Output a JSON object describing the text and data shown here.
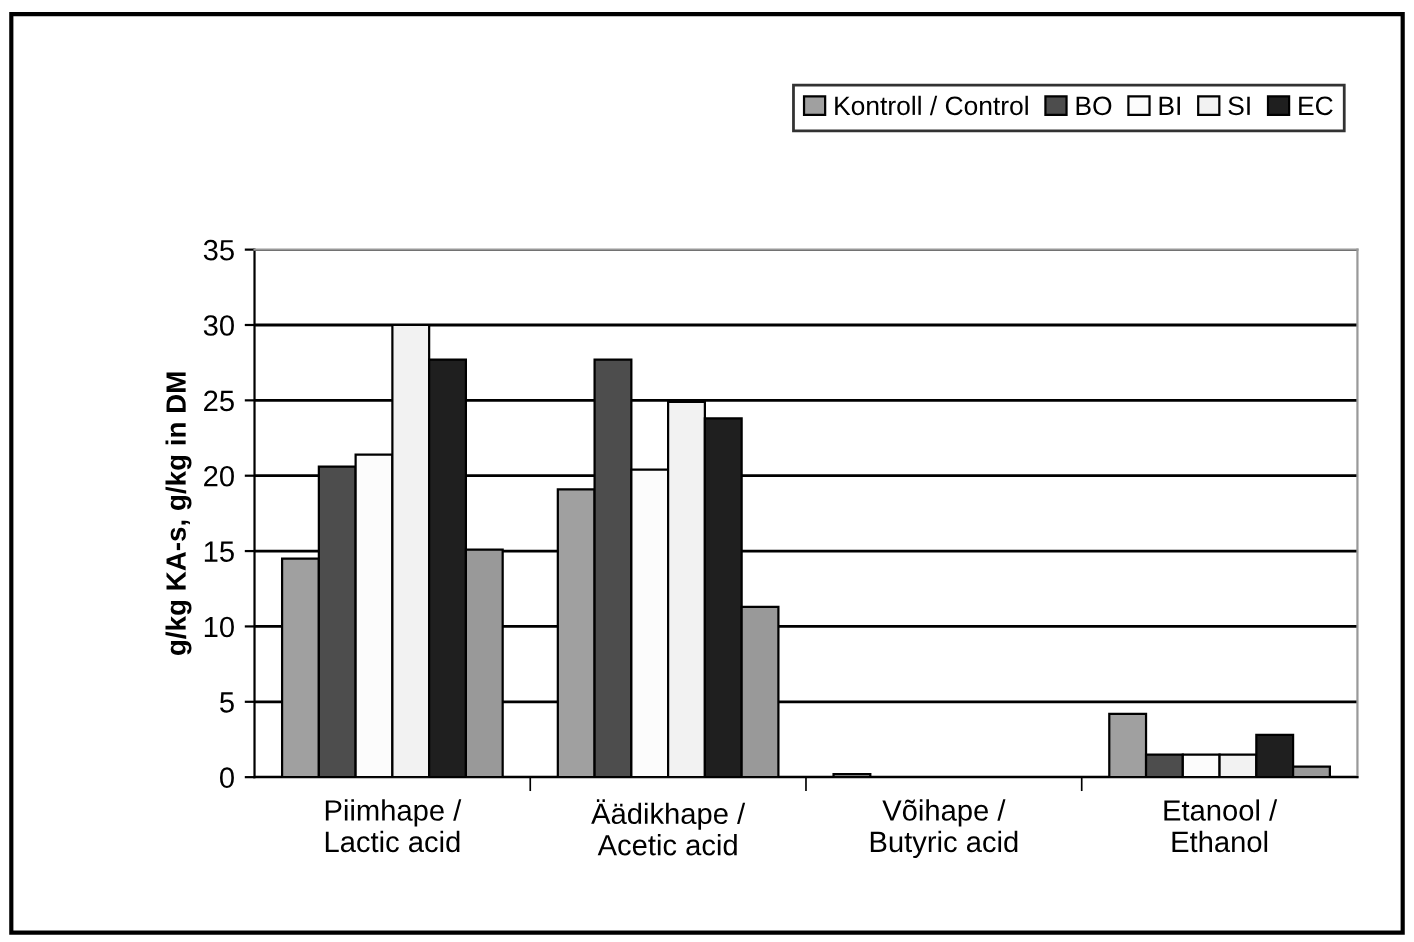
{
  "chart_data": {
    "type": "bar",
    "ylabel": "g/kg KA-s, g/kg in DM",
    "categories": [
      "Piimhape /\nLactic acid",
      "Äädikhape /\nAcetic acid",
      "Võihape /\nButyric acid",
      "Etanool /\nEthanol"
    ],
    "series": [
      {
        "name": "Kontroll / Control",
        "color": "#a0a0a0",
        "values": [
          14.5,
          19.1,
          0.2,
          4.2
        ]
      },
      {
        "name": "BO",
        "color": "#4d4d4d",
        "values": [
          20.6,
          27.7,
          null,
          1.5
        ]
      },
      {
        "name": "BI",
        "color": "#fcfcfc",
        "values": [
          21.4,
          20.4,
          null,
          1.5
        ]
      },
      {
        "name": "SI",
        "color": "#f2f2f2",
        "values": [
          30.0,
          24.9,
          null,
          1.5
        ]
      },
      {
        "name": "EC",
        "color": "#1f1f1f",
        "values": [
          27.7,
          23.8,
          null,
          2.8
        ]
      },
      {
        "color": "#999999",
        "values": [
          15.1,
          11.3,
          null,
          0.7
        ]
      }
    ],
    "ylim": [
      0,
      35
    ],
    "yticks": [
      0,
      5,
      10,
      15,
      20,
      25,
      30,
      35
    ],
    "grid": "y",
    "legend": "top right"
  }
}
